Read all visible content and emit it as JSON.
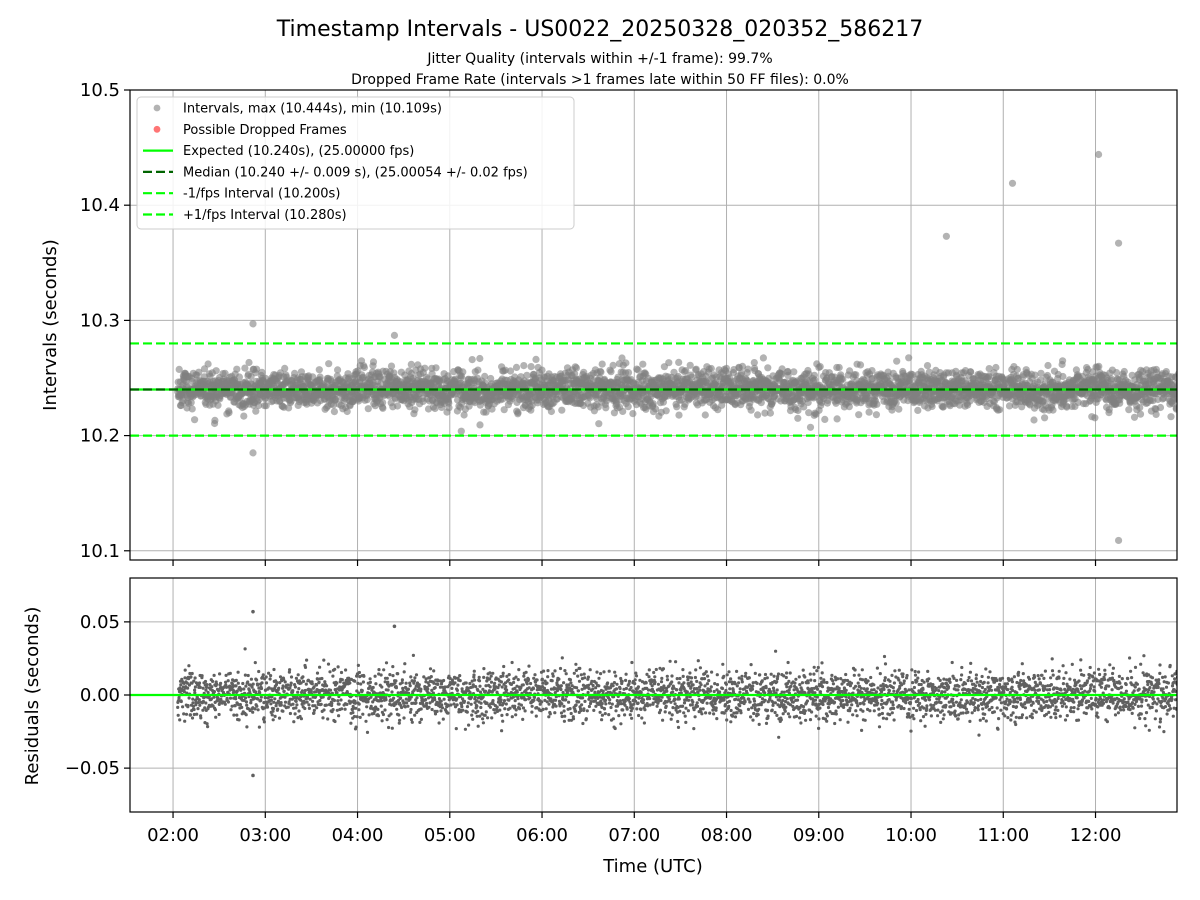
{
  "chart_data": {
    "type": "scatter",
    "title": "Timestamp Intervals - US0022_20250328_020352_586217",
    "subtitle_lines": [
      "Jitter Quality (intervals within +/-1 frame): 99.7%",
      "Dropped Frame Rate (intervals >1 frames late within 50 FF files): 0.0%"
    ],
    "xlabel": "Time (UTC)",
    "x_ticks": [
      "02:00",
      "03:00",
      "04:00",
      "05:00",
      "06:00",
      "07:00",
      "08:00",
      "09:00",
      "10:00",
      "11:00",
      "12:00"
    ],
    "x_range": [
      "01:32",
      "12:53"
    ],
    "grid": true,
    "legend_position": "top-left",
    "panels": [
      {
        "name": "intervals",
        "ylabel": "Intervals (seconds)",
        "ylim": [
          10.092,
          10.5
        ],
        "y_ticks": [
          "10.1",
          "10.2",
          "10.3",
          "10.4",
          "10.5"
        ],
        "legend": [
          "Intervals, max (10.444s), min (10.109s)",
          "Possible Dropped Frames",
          "Expected (10.240s), (25.00000 fps)",
          "Median (10.240 +/- 0.009 s), (25.00054 +/- 0.02 fps)",
          "-1/fps Interval (10.200s)",
          "+1/fps Interval (10.280s)"
        ],
        "reference_lines": [
          {
            "name": "Expected",
            "y": 10.24,
            "style": "solid",
            "color": "#00ff00"
          },
          {
            "name": "Median",
            "y": 10.24,
            "style": "dashed",
            "color": "#006400"
          },
          {
            "name": "-1/fps Interval",
            "y": 10.2,
            "style": "dashed",
            "color": "#00ff00"
          },
          {
            "name": "+1/fps Interval",
            "y": 10.28,
            "style": "dashed",
            "color": "#00ff00"
          }
        ],
        "series": [
          {
            "name": "Intervals",
            "color": "#808080",
            "summary": {
              "count_approx": 3850,
              "median": 10.24,
              "std": 0.009,
              "max": 10.444,
              "min": 10.109
            },
            "outliers": [
              {
                "time": "02:52",
                "value": 10.297
              },
              {
                "time": "02:52",
                "value": 10.185
              },
              {
                "time": "04:24",
                "value": 10.287
              },
              {
                "time": "10:23",
                "value": 10.373
              },
              {
                "time": "11:06",
                "value": 10.419
              },
              {
                "time": "12:02",
                "value": 10.444
              },
              {
                "time": "12:15",
                "value": 10.367
              },
              {
                "time": "12:15",
                "value": 10.109
              }
            ]
          },
          {
            "name": "Possible Dropped Frames",
            "color": "#ff6666",
            "values": []
          }
        ]
      },
      {
        "name": "residuals",
        "ylabel": "Residuals (seconds)",
        "ylim": [
          -0.08,
          0.08
        ],
        "y_ticks": [
          "0.05",
          "0.00",
          "−0.05"
        ],
        "reference_lines": [
          {
            "name": "zero",
            "y": 0.0,
            "style": "solid",
            "color": "#00ff00"
          }
        ],
        "series": [
          {
            "name": "Residuals",
            "color": "#606060",
            "summary": {
              "count_approx": 3850,
              "std": 0.009,
              "max": 0.057,
              "min": -0.054
            }
          }
        ]
      }
    ]
  }
}
